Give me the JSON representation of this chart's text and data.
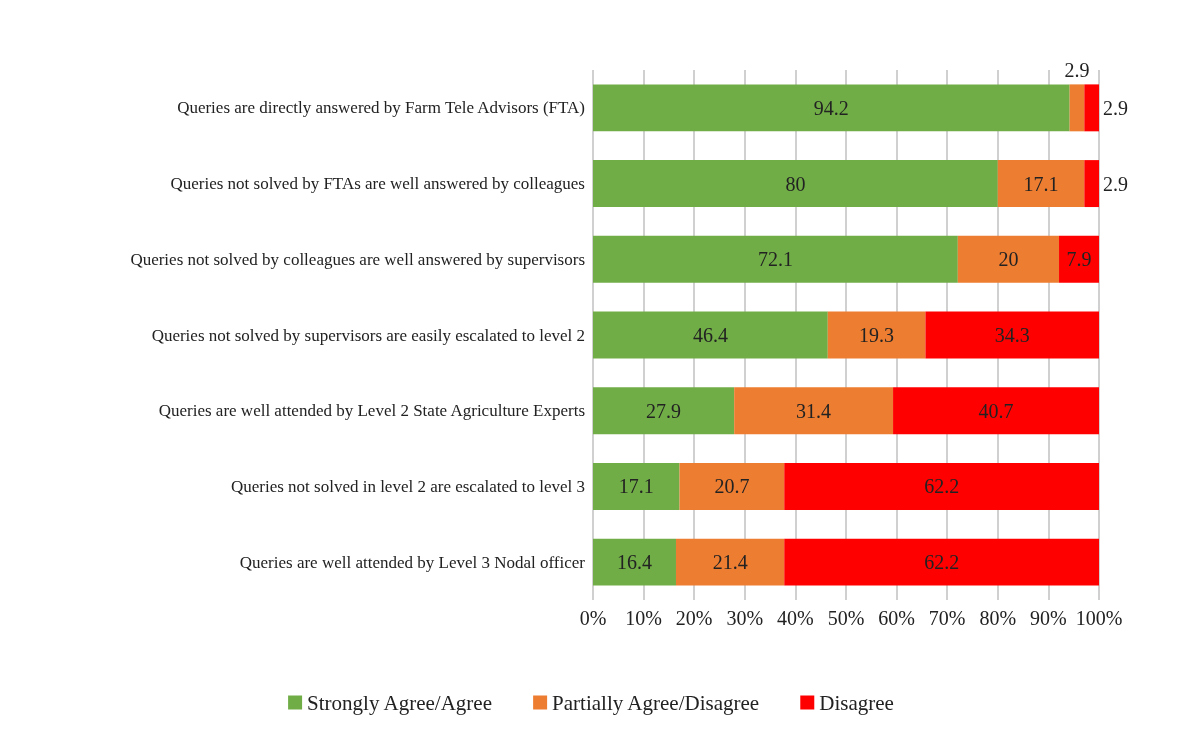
{
  "chart_data": {
    "type": "bar",
    "orientation": "horizontal",
    "stacked": true,
    "data_labels": true,
    "grid": "x",
    "legend": "bottom",
    "categories": [
      "Queries are directly answered by Farm Tele Advisors (FTA)",
      "Queries not solved by FTAs are well answered by colleagues",
      "Queries not solved by colleagues are well answered by supervisors",
      "Queries not solved by supervisors are easily escalated to level 2",
      "Queries are well attended by Level 2 State Agriculture Experts",
      "Queries not solved in level 2 are escalated to level 3",
      "Queries are well attended by Level 3 Nodal officer"
    ],
    "series": [
      {
        "name": "Strongly Agree/Agree",
        "color": "#70ad47",
        "values": [
          94.2,
          80,
          72.1,
          46.4,
          27.9,
          17.1,
          16.4
        ]
      },
      {
        "name": "Partially Agree/Disagree",
        "color": "#ed7d31",
        "values": [
          2.9,
          17.1,
          20,
          19.3,
          31.4,
          20.7,
          21.4
        ]
      },
      {
        "name": "Disagree",
        "color": "#ff0000",
        "values": [
          2.9,
          2.9,
          7.9,
          34.3,
          40.7,
          62.2,
          62.2
        ]
      }
    ],
    "xlim": [
      0,
      100
    ],
    "xticks": [
      {
        "value": 0,
        "label": "0%"
      },
      {
        "value": 10,
        "label": "10%"
      },
      {
        "value": 20,
        "label": "20%"
      },
      {
        "value": 30,
        "label": "30%"
      },
      {
        "value": 40,
        "label": "40%"
      },
      {
        "value": 50,
        "label": "50%"
      },
      {
        "value": 60,
        "label": "60%"
      },
      {
        "value": 70,
        "label": "70%"
      },
      {
        "value": 80,
        "label": "80%"
      },
      {
        "value": 90,
        "label": "90%"
      },
      {
        "value": 100,
        "label": "100%"
      }
    ]
  }
}
